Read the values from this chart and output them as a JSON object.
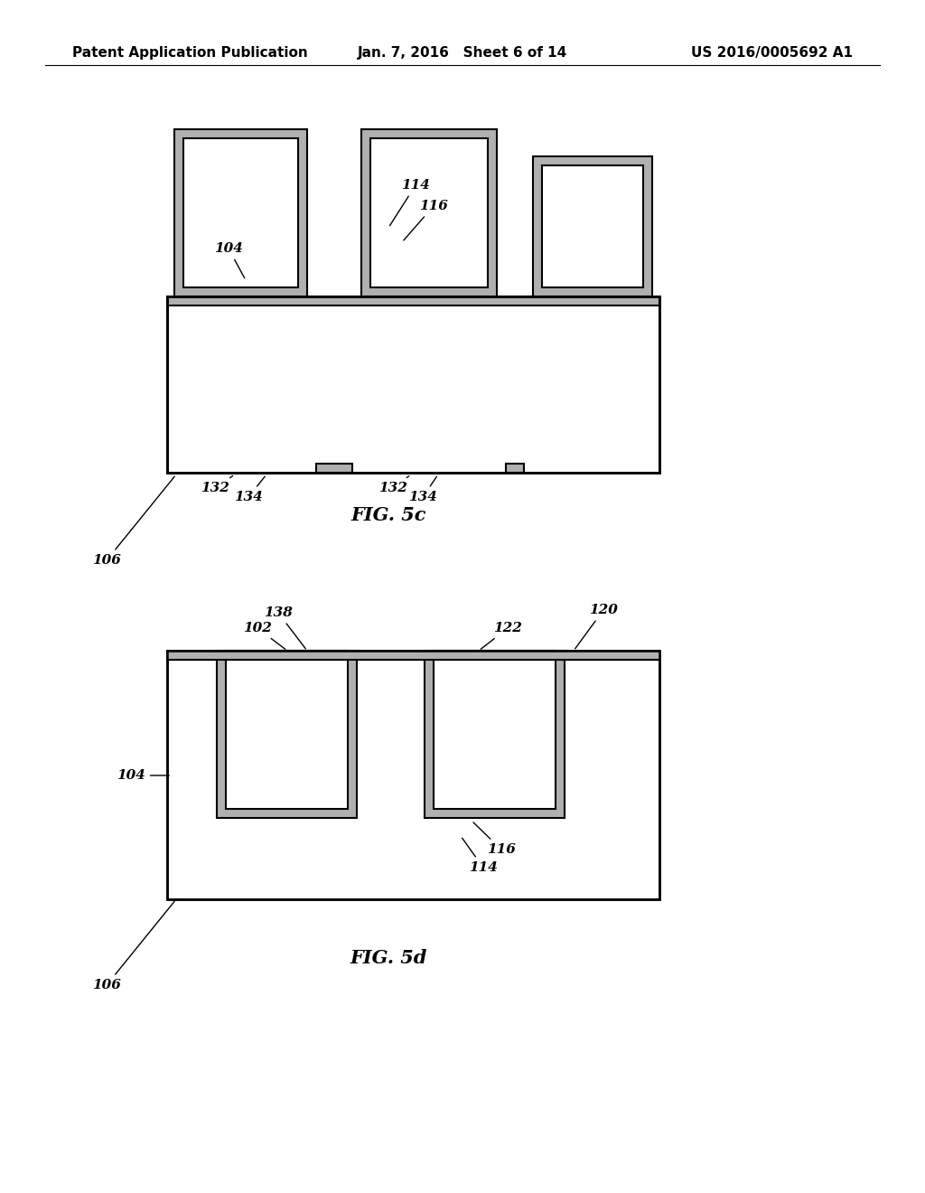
{
  "bg_color": "#ffffff",
  "line_color": "#000000",
  "gray_color": "#b0b0b0",
  "header": {
    "left": "Patent Application Publication",
    "center": "Jan. 7, 2016   Sheet 6 of 14",
    "right": "US 2016/0005692 A1",
    "fontsize": 11
  }
}
